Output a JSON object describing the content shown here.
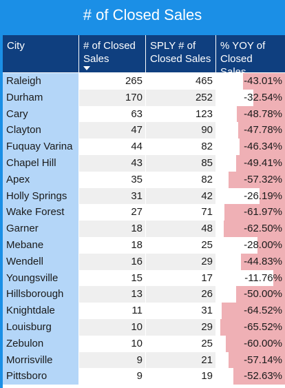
{
  "title": "# of Closed Sales",
  "columns": {
    "city": "City",
    "closed": "# of Closed Sales",
    "sply": "SPLY # of Closed Sales",
    "yoy": "% YOY of Closed Sales"
  },
  "colors": {
    "frame": "#1b8fe6",
    "header": "#0f3f7f",
    "city_fill": "#b4d6f8",
    "yoy_bar": "#efb0b5"
  },
  "rows": [
    {
      "city": "Raleigh",
      "closed": "265",
      "sply": "465",
      "yoy": "-43.01%",
      "yoy_value": -43.01
    },
    {
      "city": "Durham",
      "closed": "170",
      "sply": "252",
      "yoy": "-32.54%",
      "yoy_value": -32.54
    },
    {
      "city": "Cary",
      "closed": "63",
      "sply": "123",
      "yoy": "-48.78%",
      "yoy_value": -48.78
    },
    {
      "city": "Clayton",
      "closed": "47",
      "sply": "90",
      "yoy": "-47.78%",
      "yoy_value": -47.78
    },
    {
      "city": "Fuquay Varina",
      "closed": "44",
      "sply": "82",
      "yoy": "-46.34%",
      "yoy_value": -46.34
    },
    {
      "city": "Chapel Hill",
      "closed": "43",
      "sply": "85",
      "yoy": "-49.41%",
      "yoy_value": -49.41
    },
    {
      "city": "Apex",
      "closed": "35",
      "sply": "82",
      "yoy": "-57.32%",
      "yoy_value": -57.32
    },
    {
      "city": "Holly Springs",
      "closed": "31",
      "sply": "42",
      "yoy": "-26.19%",
      "yoy_value": -26.19
    },
    {
      "city": "Wake Forest",
      "closed": "27",
      "sply": "71",
      "yoy": "-61.97%",
      "yoy_value": -61.97
    },
    {
      "city": "Garner",
      "closed": "18",
      "sply": "48",
      "yoy": "-62.50%",
      "yoy_value": -62.5
    },
    {
      "city": "Mebane",
      "closed": "18",
      "sply": "25",
      "yoy": "-28.00%",
      "yoy_value": -28.0
    },
    {
      "city": "Wendell",
      "closed": "16",
      "sply": "29",
      "yoy": "-44.83%",
      "yoy_value": -44.83
    },
    {
      "city": "Youngsville",
      "closed": "15",
      "sply": "17",
      "yoy": "-11.76%",
      "yoy_value": -11.76
    },
    {
      "city": "Hillsborough",
      "closed": "13",
      "sply": "26",
      "yoy": "-50.00%",
      "yoy_value": -50.0
    },
    {
      "city": "Knightdale",
      "closed": "11",
      "sply": "31",
      "yoy": "-64.52%",
      "yoy_value": -64.52
    },
    {
      "city": "Louisburg",
      "closed": "10",
      "sply": "29",
      "yoy": "-65.52%",
      "yoy_value": -65.52
    },
    {
      "city": "Zebulon",
      "closed": "10",
      "sply": "25",
      "yoy": "-60.00%",
      "yoy_value": -60.0
    },
    {
      "city": "Morrisville",
      "closed": "9",
      "sply": "21",
      "yoy": "-57.14%",
      "yoy_value": -57.14
    },
    {
      "city": "Pittsboro",
      "closed": "9",
      "sply": "19",
      "yoy": "-52.63%",
      "yoy_value": -52.63
    }
  ]
}
